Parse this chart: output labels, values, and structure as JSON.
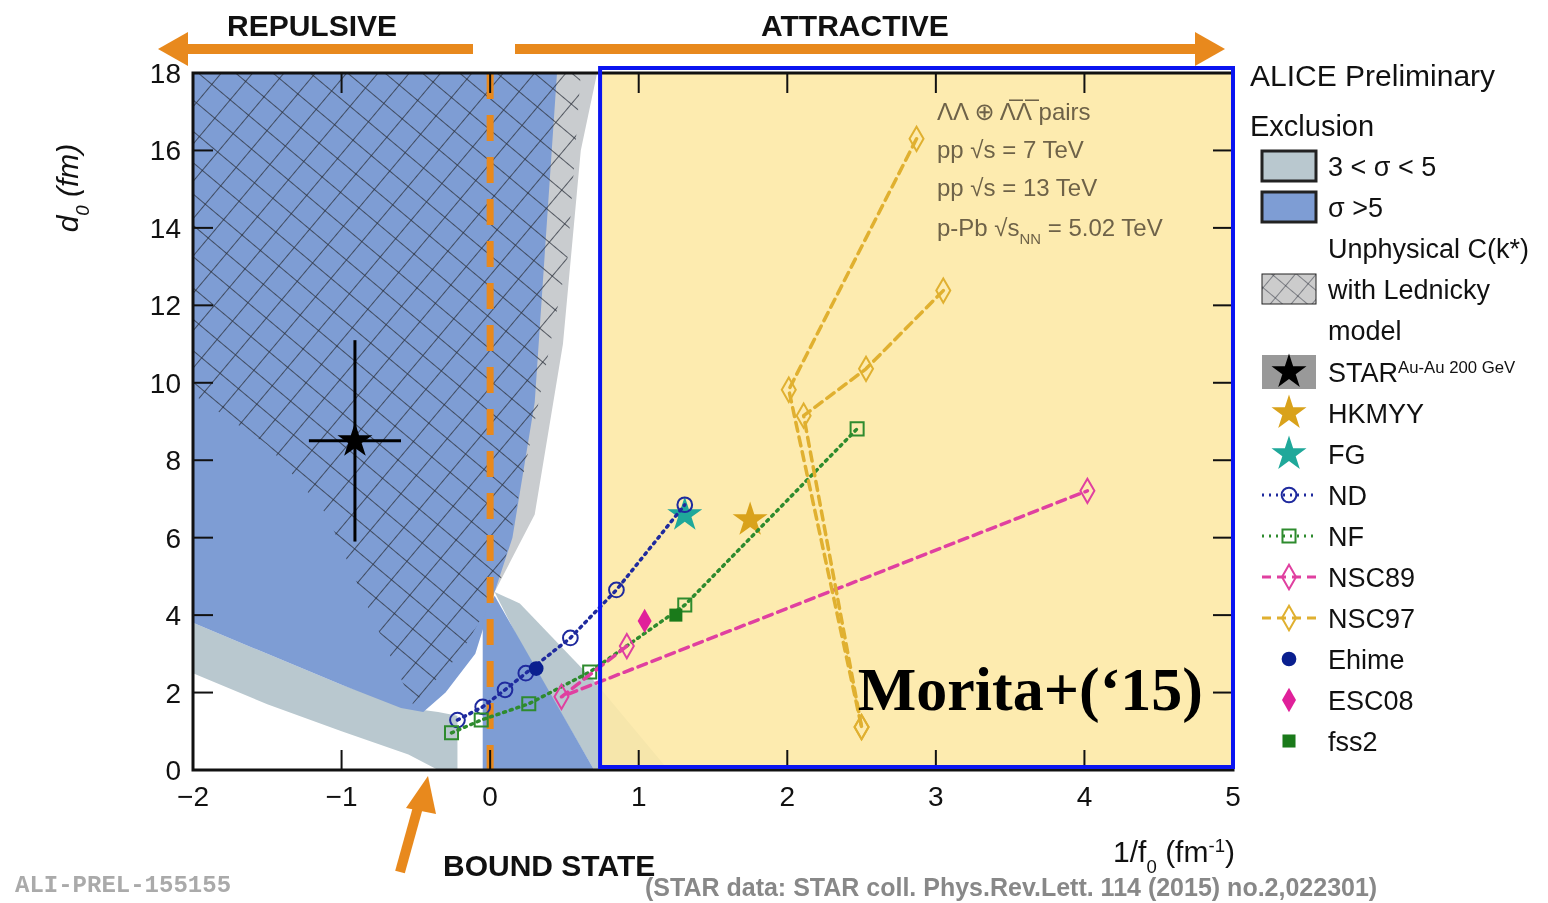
{
  "chart_data": {
    "type": "scatter",
    "xlabel": "1/f$_{0}$ (fm$^{-1}$)",
    "ylabel": "d$_{0}$ (fm)",
    "legend": "right",
    "xlim": [
      -2,
      5
    ],
    "xticks": [
      -2,
      -1,
      0,
      1,
      2,
      3,
      4,
      5
    ],
    "ylim": [
      0,
      18
    ],
    "yticks": [
      0,
      2,
      4,
      6,
      8,
      10,
      12,
      14,
      16,
      18
    ],
    "annotations": [
      "REPULSIVE",
      "ATTRACTIVE",
      "BOUND STATE",
      "ALICE Preliminary",
      "ΛΛ ⊕ Λ̅Λ̅ pairs",
      "pp √s = 7 TeV",
      "pp √s = 13 TeV",
      "p-Pb √s$_{NN}$ = 5.02 TeV",
      "ALI-PREL-155155",
      "(STAR data: STAR coll. Phys.Rev.Lett. 114 (2015) no.2,022301)",
      "Exclusion",
      "3 < σ < 5",
      "σ >5",
      "Unphysical C(k*)",
      "with Lednicky",
      "model"
    ],
    "ref_lines": [
      {
        "axis": "x",
        "value": 0,
        "color": "#e8891d",
        "line_style": "dashed"
      }
    ],
    "bands": [
      {
        "axis": "x",
        "from": 0.74,
        "to": 5,
        "label": "Morita+(‘15)",
        "color": "#fde9a6"
      }
    ],
    "series": [
      {
        "name": "STAR$^{Au-Au 200 GeV}$",
        "marker": "star",
        "color": "#000000",
        "x": [
          -0.91
        ],
        "values": [
          8.5
        ],
        "errors": [
          2.6
        ],
        "xerrors": [
          0.31
        ]
      },
      {
        "name": "HKMYY",
        "marker": "star",
        "color": "#d9a21b",
        "x": [
          1.75
        ],
        "values": [
          6.46
        ]
      },
      {
        "name": "FG",
        "marker": "star",
        "color": "#1fa89a",
        "x": [
          1.31
        ],
        "values": [
          6.59
        ]
      },
      {
        "name": "ND",
        "type": "line",
        "marker": "circle",
        "line_style": "dotted",
        "color": "#1f2a9e",
        "x": [
          -0.22,
          -0.05,
          0.1,
          0.24,
          0.54,
          0.85,
          1.31
        ],
        "values": [
          1.29,
          1.63,
          2.07,
          2.5,
          3.41,
          4.65,
          6.85
        ]
      },
      {
        "name": "NF",
        "type": "line",
        "marker": "square",
        "line_style": "dotted",
        "color": "#2e8b2e",
        "x": [
          -0.26,
          -0.06,
          0.26,
          0.67,
          1.31,
          2.47
        ],
        "values": [
          0.96,
          1.29,
          1.71,
          2.53,
          4.26,
          8.81
        ]
      },
      {
        "name": "NSC89",
        "type": "line",
        "marker": "diamond",
        "line_style": "dashed",
        "color": "#e040a0",
        "x": [
          0.92,
          0.48,
          4.02
        ],
        "values": [
          3.2,
          1.89,
          7.21
        ]
      },
      {
        "name": "NSC97",
        "type": "line",
        "marker": "diamond",
        "line_style": "dashed",
        "color": "#e0b030",
        "x": [
          2.87,
          2.01,
          2.5
        ],
        "values": [
          16.3,
          9.82,
          1.11
        ]
      },
      {
        "type": "line",
        "marker": "diamond",
        "line_style": "dashed",
        "color": "#e0b030",
        "x": [
          3.05,
          2.53,
          2.11,
          2.5
        ],
        "values": [
          12.38,
          10.36,
          9.15,
          1.11
        ]
      },
      {
        "name": "Ehime",
        "marker": "circle",
        "color": "#0a1f8f",
        "x": [
          0.31
        ],
        "values": [
          2.62
        ]
      },
      {
        "name": "ESC08",
        "marker": "diamond",
        "color": "#e0209a",
        "x": [
          1.04
        ],
        "values": [
          3.85
        ]
      },
      {
        "name": "fss2",
        "marker": "square",
        "color": "#1a7a1a",
        "x": [
          1.25
        ],
        "values": [
          4.0
        ]
      }
    ]
  }
}
